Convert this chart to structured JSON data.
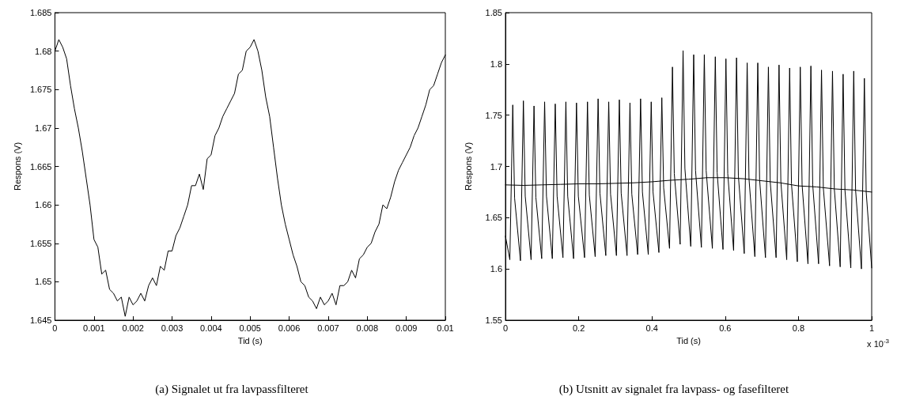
{
  "chart_data": [
    {
      "type": "line",
      "xlabel": "Tid (s)",
      "ylabel": "Respons (V)",
      "xlim": [
        0,
        0.01
      ],
      "ylim": [
        1.645,
        1.685
      ],
      "xticks": [
        0,
        0.001,
        0.002,
        0.003,
        0.004,
        0.005,
        0.006,
        0.007,
        0.008,
        0.009,
        0.01
      ],
      "yticks": [
        1.645,
        1.65,
        1.655,
        1.66,
        1.665,
        1.67,
        1.675,
        1.68,
        1.685
      ],
      "annotations": [
        "(a) Signalet ut fra lavpassfilteret"
      ],
      "series": [
        {
          "color": "#000000",
          "x": [
            0,
            0.0001,
            0.0002,
            0.0003,
            0.0004,
            0.0005,
            0.0006,
            0.0007,
            0.0008,
            0.0009,
            0.001,
            0.0011,
            0.0012,
            0.0013,
            0.0014,
            0.0015,
            0.0016,
            0.0017,
            0.0018,
            0.0019,
            0.002,
            0.0021,
            0.0022,
            0.0023,
            0.0024,
            0.0025,
            0.0026,
            0.0027,
            0.0028,
            0.0029,
            0.003,
            0.0031,
            0.0032,
            0.0033,
            0.0034,
            0.0035,
            0.0036,
            0.0037,
            0.0038,
            0.0039,
            0.004,
            0.0041,
            0.0042,
            0.0043,
            0.0044,
            0.0045,
            0.0046,
            0.0047,
            0.0048,
            0.0049,
            0.005,
            0.0051,
            0.0052,
            0.0053,
            0.0054,
            0.0055,
            0.0056,
            0.0057,
            0.0058,
            0.0059,
            0.006,
            0.0061,
            0.0062,
            0.0063,
            0.0064,
            0.0065,
            0.0066,
            0.0067,
            0.0068,
            0.0069,
            0.007,
            0.0071,
            0.0072,
            0.0073,
            0.0074,
            0.0075,
            0.0076,
            0.0077,
            0.0078,
            0.0079,
            0.008,
            0.0081,
            0.0082,
            0.0083,
            0.0084,
            0.0085,
            0.0086,
            0.0087,
            0.0088,
            0.0089,
            0.009,
            0.0091,
            0.0092,
            0.0093,
            0.0094,
            0.0095,
            0.0096,
            0.0097,
            0.0098,
            0.0099,
            0.01
          ],
          "values": [
            1.68,
            1.6815,
            1.6805,
            1.679,
            1.6755,
            1.6725,
            1.67,
            1.667,
            1.6635,
            1.66,
            1.6555,
            1.6545,
            1.651,
            1.6515,
            1.649,
            1.6485,
            1.6475,
            1.648,
            1.6455,
            1.648,
            1.647,
            1.6475,
            1.6485,
            1.6475,
            1.6495,
            1.6505,
            1.6495,
            1.652,
            1.6515,
            1.654,
            1.654,
            1.656,
            1.657,
            1.6585,
            1.66,
            1.6625,
            1.6625,
            1.664,
            1.662,
            1.666,
            1.6665,
            1.669,
            1.67,
            1.6715,
            1.6725,
            1.6735,
            1.6745,
            1.677,
            1.6775,
            1.68,
            1.6805,
            1.6815,
            1.68,
            1.6775,
            1.674,
            1.6715,
            1.6675,
            1.6635,
            1.66,
            1.6575,
            1.6555,
            1.6535,
            1.652,
            1.65,
            1.6495,
            1.648,
            1.6475,
            1.6465,
            1.648,
            1.647,
            1.6475,
            1.6485,
            1.647,
            1.6495,
            1.6495,
            1.65,
            1.6515,
            1.6505,
            1.653,
            1.6535,
            1.6545,
            1.655,
            1.6565,
            1.6575,
            1.66,
            1.6595,
            1.661,
            1.663,
            1.6645,
            1.6655,
            1.6665,
            1.6675,
            1.669,
            1.67,
            1.6715,
            1.673,
            1.675,
            1.6755,
            1.677,
            1.6785,
            1.6795
          ]
        }
      ]
    },
    {
      "type": "line",
      "xlabel": "Tid (s)",
      "ylabel": "Respons (V)",
      "xlim": [
        0,
        1
      ],
      "ylim": [
        1.55,
        1.85
      ],
      "xticks": [
        0,
        0.2,
        0.4,
        0.6,
        0.8,
        1
      ],
      "yticks": [
        1.55,
        1.6,
        1.65,
        1.7,
        1.75,
        1.8,
        1.85
      ],
      "annotations": [
        "x 10$^{-3}$",
        "(b) Utsnitt av signalet fra lavpass- og fasefilteret"
      ],
      "series": [
        {
          "color": "#000000",
          "x": [
            0,
            0.012,
            0.02,
            0.025,
            0.041,
            0.049,
            0.054,
            0.07,
            0.078,
            0.083,
            0.099,
            0.107,
            0.112,
            0.128,
            0.136,
            0.141,
            0.157,
            0.165,
            0.17,
            0.186,
            0.194,
            0.199,
            0.216,
            0.224,
            0.229,
            0.245,
            0.253,
            0.258,
            0.274,
            0.282,
            0.287,
            0.303,
            0.311,
            0.316,
            0.332,
            0.34,
            0.345,
            0.361,
            0.369,
            0.374,
            0.39,
            0.398,
            0.403,
            0.419,
            0.427,
            0.432,
            0.448,
            0.456,
            0.461,
            0.477,
            0.485,
            0.49,
            0.506,
            0.514,
            0.519,
            0.535,
            0.543,
            0.548,
            0.565,
            0.573,
            0.578,
            0.594,
            0.602,
            0.607,
            0.623,
            0.631,
            0.636,
            0.652,
            0.66,
            0.665,
            0.681,
            0.689,
            0.694,
            0.71,
            0.718,
            0.723,
            0.739,
            0.747,
            0.752,
            0.768,
            0.776,
            0.781,
            0.797,
            0.805,
            0.81,
            0.826,
            0.834,
            0.839,
            0.855,
            0.863,
            0.868,
            0.885,
            0.893,
            0.898,
            0.914,
            0.922,
            0.927,
            0.943,
            0.951,
            0.956,
            0.972,
            0.98,
            0.985,
            1
          ],
          "values": [
            1.632,
            1.609,
            1.76,
            1.669,
            1.608,
            1.764,
            1.671,
            1.609,
            1.759,
            1.67,
            1.61,
            1.763,
            1.671,
            1.61,
            1.761,
            1.671,
            1.611,
            1.763,
            1.671,
            1.61,
            1.762,
            1.671,
            1.611,
            1.763,
            1.672,
            1.612,
            1.766,
            1.674,
            1.613,
            1.763,
            1.673,
            1.613,
            1.765,
            1.674,
            1.613,
            1.762,
            1.673,
            1.614,
            1.766,
            1.675,
            1.614,
            1.763,
            1.675,
            1.616,
            1.767,
            1.679,
            1.62,
            1.797,
            1.693,
            1.624,
            1.813,
            1.698,
            1.622,
            1.809,
            1.696,
            1.621,
            1.809,
            1.696,
            1.62,
            1.807,
            1.694,
            1.619,
            1.805,
            1.693,
            1.618,
            1.806,
            1.691,
            1.615,
            1.801,
            1.688,
            1.612,
            1.801,
            1.687,
            1.611,
            1.797,
            1.685,
            1.611,
            1.799,
            1.685,
            1.609,
            1.796,
            1.683,
            1.607,
            1.797,
            1.682,
            1.605,
            1.798,
            1.682,
            1.605,
            1.794,
            1.679,
            1.603,
            1.793,
            1.678,
            1.602,
            1.79,
            1.677,
            1.601,
            1.793,
            1.677,
            1.6,
            1.786,
            1.675,
            1.601
          ]
        },
        {
          "color": "#000000",
          "x": [
            0,
            0.05,
            0.1,
            0.15,
            0.2,
            0.25,
            0.3,
            0.35,
            0.4,
            0.45,
            0.5,
            0.55,
            0.6,
            0.65,
            0.7,
            0.75,
            0.8,
            0.85,
            0.9,
            0.95,
            1
          ],
          "values": [
            1.682,
            1.6815,
            1.682,
            1.6825,
            1.683,
            1.683,
            1.6835,
            1.684,
            1.685,
            1.6865,
            1.6875,
            1.689,
            1.689,
            1.688,
            1.686,
            1.684,
            1.681,
            1.68,
            1.678,
            1.677,
            1.675
          ]
        }
      ]
    }
  ]
}
